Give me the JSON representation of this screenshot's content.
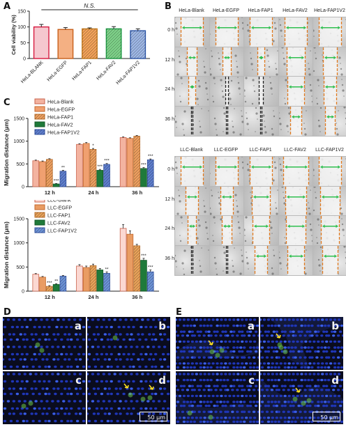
{
  "panels": {
    "A": "A",
    "B": "B",
    "C": "C",
    "D": "D",
    "E": "E"
  },
  "panel_a": {
    "chart_data": {
      "type": "bar",
      "ylabel": "Cell viability (%)",
      "categories": [
        "HeLa-BLANK",
        "HeLa-EGFP",
        "HeLa-FAP1",
        "HeLa-FAV2",
        "HeLa-FAP1V2"
      ],
      "values": [
        100,
        92,
        94,
        94,
        88
      ],
      "errors": [
        8,
        6,
        3,
        7,
        6
      ],
      "ylim": [
        0,
        150
      ],
      "yticks": [
        "0",
        "50",
        "100",
        "150"
      ],
      "annotation": "N.S.",
      "colors": [
        "#f5c7cf",
        "#f4b083",
        "#f3a35a",
        "#7fd38a",
        "#9fb8e6"
      ],
      "edges": [
        "#d7193f",
        "#c85f1a",
        "#c27a1e",
        "#1e9a45",
        "#2d56a8"
      ],
      "patterns": [
        "none",
        "none",
        "diag",
        "diag",
        "diag"
      ]
    }
  },
  "panel_c_top": {
    "chart_data": {
      "type": "bar",
      "ylabel": "Migration distance (μm)",
      "categories": [
        "12 h",
        "24 h",
        "36 h"
      ],
      "ylim": [
        0,
        1500
      ],
      "yticks": [
        "0",
        "500",
        "1000",
        "1500"
      ],
      "series": [
        {
          "name": "HeLa-Blank",
          "values": [
            570,
            930,
            1080
          ],
          "errors": [
            15,
            15,
            15
          ],
          "sig": [
            "",
            "",
            ""
          ]
        },
        {
          "name": "HeLa-EGFP",
          "values": [
            550,
            950,
            1060
          ],
          "errors": [
            15,
            20,
            15
          ],
          "sig": [
            "",
            "",
            ""
          ]
        },
        {
          "name": "HeLa-FAP1",
          "values": [
            600,
            820,
            1110
          ],
          "errors": [
            15,
            20,
            15
          ],
          "sig": [
            "",
            "*",
            ""
          ]
        },
        {
          "name": "HeLa-FAV2",
          "values": [
            60,
            360,
            400
          ],
          "errors": [
            10,
            20,
            20
          ],
          "sig": [
            "***",
            "***",
            "***"
          ]
        },
        {
          "name": "HeLa-FAP1V2",
          "values": [
            340,
            490,
            590
          ],
          "errors": [
            20,
            20,
            20
          ],
          "sig": [
            "**",
            "***",
            "***"
          ]
        }
      ]
    }
  },
  "panel_c_bottom": {
    "chart_data": {
      "type": "bar",
      "ylabel": "Migration distance (μm)",
      "categories": [
        "12 h",
        "24 h",
        "36 h"
      ],
      "ylim": [
        0,
        1500
      ],
      "yticks": [
        "0",
        "500",
        "1000",
        "1500"
      ],
      "series": [
        {
          "name": "LLC-Blank",
          "values": [
            350,
            520,
            1300
          ],
          "errors": [
            15,
            30,
            80
          ],
          "sig": [
            "",
            "",
            ""
          ]
        },
        {
          "name": "LLC-EGFP",
          "values": [
            290,
            490,
            1180
          ],
          "errors": [
            15,
            30,
            70
          ],
          "sig": [
            "",
            "",
            ""
          ]
        },
        {
          "name": "LLC-FAP1",
          "values": [
            100,
            530,
            940
          ],
          "errors": [
            15,
            30,
            30
          ],
          "sig": [
            "***",
            "",
            ""
          ]
        },
        {
          "name": "LLC-FAV2",
          "values": [
            140,
            440,
            640
          ],
          "errors": [
            15,
            30,
            40
          ],
          "sig": [
            "**",
            "",
            "***"
          ]
        },
        {
          "name": "LLC-FAP1V2",
          "values": [
            310,
            370,
            400
          ],
          "errors": [
            15,
            30,
            40
          ],
          "sig": [
            "",
            "**",
            "***"
          ]
        }
      ]
    }
  },
  "series_style": {
    "hela_fill": [
      "#f3b3a0",
      "#f0a070",
      "#eea060",
      "#1f7a3a",
      "#5f7fcf"
    ],
    "hela_edge": [
      "#c9634d",
      "#c46a2f",
      "#b86d2a",
      "#145a28",
      "#2f4f9f"
    ],
    "hela_pattern": [
      "none",
      "none",
      "diag",
      "none",
      "diag"
    ],
    "llc_fill": [
      "#fbd8d2",
      "#e99c63",
      "#e9a35a",
      "#1f7a3a",
      "#6d93d8"
    ],
    "llc_edge": [
      "#c9634d",
      "#c46a2f",
      "#b86d2a",
      "#145a28",
      "#2f4f9f"
    ],
    "llc_pattern": [
      "none",
      "none",
      "diag",
      "none",
      "diag"
    ]
  },
  "panel_b": {
    "hela_cols": [
      "HeLa-Blank",
      "HeLa-EGFP",
      "HeLa-FAP1",
      "HeLa-FAV2",
      "HeLa-FAP1V2"
    ],
    "llc_cols": [
      "LLC-Blank",
      "LLC-EGFP",
      "LLC-FAP1",
      "LLC-FAV2",
      "LLC-FAP1V2"
    ],
    "rows": [
      "0 h",
      "12 h",
      "24 h",
      "36 h"
    ]
  },
  "panel_d": {
    "subs": [
      "a",
      "b",
      "c",
      "d"
    ],
    "scalebar": "50 μm"
  },
  "panel_e": {
    "subs": [
      "a",
      "b",
      "c",
      "d"
    ],
    "scalebar": "50 μm"
  }
}
